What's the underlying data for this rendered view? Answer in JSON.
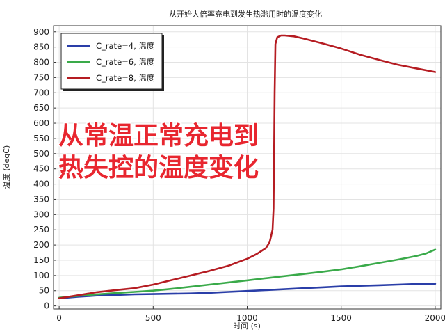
{
  "chart_data": {
    "type": "line",
    "title": "从开始大倍率充电到发生热滥用时的温度变化",
    "xlabel": "时间 (s)",
    "ylabel": "温度 (degC)",
    "xlim": [
      -30,
      2030
    ],
    "ylim": [
      -10,
      920
    ],
    "xticks": [
      0,
      500,
      1000,
      1500,
      2000
    ],
    "yticks": [
      0,
      50,
      100,
      150,
      200,
      250,
      300,
      350,
      400,
      450,
      500,
      550,
      600,
      650,
      700,
      750,
      800,
      850,
      900
    ],
    "grid": true,
    "legend_position": "top-left",
    "series": [
      {
        "name": "C_rate=4, 温度",
        "color": "#2a3ea8",
        "x": [
          0,
          100,
          200,
          300,
          400,
          500,
          600,
          700,
          800,
          900,
          1000,
          1100,
          1200,
          1300,
          1400,
          1500,
          1600,
          1700,
          1800,
          1900,
          2000
        ],
        "y": [
          25,
          30,
          34,
          36,
          38,
          39,
          40,
          41,
          43,
          46,
          49,
          52,
          55,
          58,
          61,
          64,
          66,
          68,
          70,
          72,
          73
        ]
      },
      {
        "name": "C_rate=6, 温度",
        "color": "#3aaa4a",
        "x": [
          0,
          100,
          200,
          300,
          400,
          500,
          600,
          700,
          800,
          900,
          1000,
          1100,
          1200,
          1300,
          1400,
          1500,
          1600,
          1700,
          1800,
          1900,
          1950,
          2000
        ],
        "y": [
          27,
          33,
          38,
          42,
          46,
          50,
          56,
          63,
          70,
          77,
          84,
          91,
          98,
          105,
          112,
          120,
          130,
          141,
          152,
          164,
          172,
          185
        ]
      },
      {
        "name": "C_rate=8, 温度",
        "color": "#b51c22",
        "x": [
          0,
          100,
          200,
          300,
          400,
          500,
          600,
          700,
          800,
          900,
          1000,
          1050,
          1100,
          1120,
          1135,
          1140,
          1143,
          1146,
          1150,
          1160,
          1180,
          1200,
          1250,
          1300,
          1400,
          1500,
          1600,
          1700,
          1800,
          1900,
          2000
        ],
        "y": [
          25,
          35,
          45,
          52,
          58,
          70,
          85,
          100,
          115,
          132,
          155,
          170,
          190,
          210,
          250,
          320,
          500,
          700,
          860,
          882,
          888,
          888,
          885,
          878,
          862,
          845,
          825,
          808,
          792,
          780,
          768
        ]
      }
    ]
  },
  "overlay": {
    "line1": "从常温正常充电到",
    "line2": "热失控的温度变化"
  }
}
